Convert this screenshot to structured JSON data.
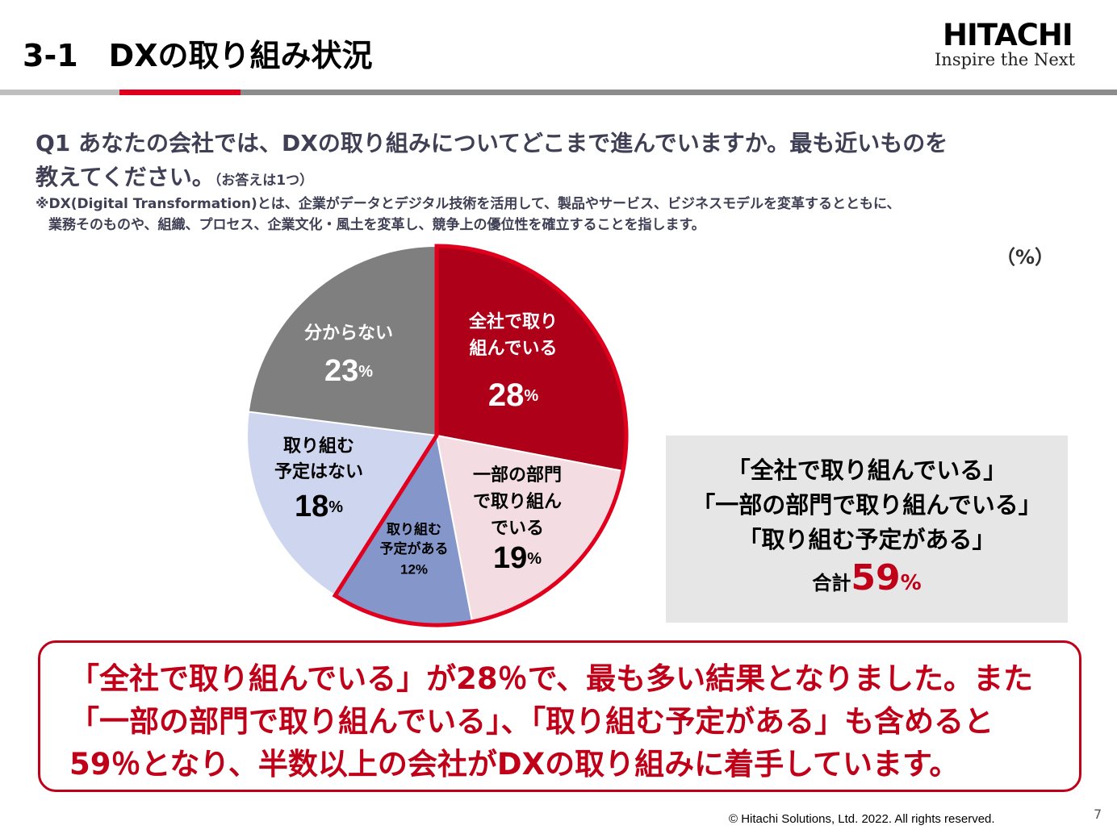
{
  "header": {
    "title": "3-1　DXの取り組み状況",
    "logo": "HITACHI",
    "tagline": "Inspire the Next"
  },
  "question": {
    "line1": "Q1 あなたの会社では、DXの取り組みについてどこまで進んでいますか。最も近いものを",
    "line2": "教えてください。",
    "answer_note": "（お答えは1つ）",
    "definition": [
      "※DX(Digital Transformation)とは、企業がデータとデジタル技術を活用して、製品やサービス、ビジネスモデルを変革するとともに、",
      "業務そのものや、組織、プロセス、企業文化・風土を変革し、競争上の優位性を確立することを指します。"
    ]
  },
  "chart_data": {
    "type": "pie",
    "unit_label": "（%）",
    "categories": [
      "全社で取り組んでいる",
      "一部の部門で取り組んでいる",
      "取り組む予定がある",
      "取り組む予定はない",
      "分からない"
    ],
    "values": [
      28,
      19,
      12,
      18,
      23
    ],
    "value_labels": [
      "28%",
      "19%",
      "12%",
      "18%",
      "23%"
    ],
    "colors": [
      "#af0019",
      "#f3dde2",
      "#8597ca",
      "#cdd6ee",
      "#7f7f7f"
    ],
    "highlight_color": "#e0001e"
  },
  "summary": {
    "lines": [
      "「全社で取り組んでいる」",
      "「一部の部門で取り組んでいる」",
      "「取り組む予定がある」"
    ],
    "total_label": "合計",
    "total": "59%"
  },
  "conclusion": [
    "「全社で取り組んでいる」が28％で、最も多い結果となりました。また",
    "「一部の部門で取り組んでいる」、「取り組む予定がある」も含めると",
    "59％となり、半数以上の会社がDXの取り組みに着手しています。"
  ],
  "footer": {
    "copyright": "© Hitachi Solutions, Ltd. 2022. All rights reserved.",
    "page": "7"
  }
}
